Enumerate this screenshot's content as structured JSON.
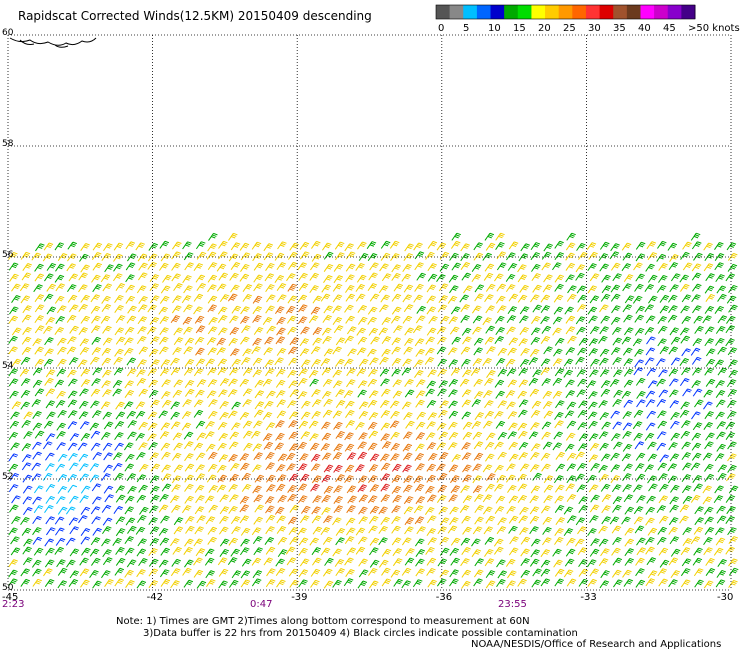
{
  "title": "Rapidscat Corrected Winds(12.5KM) 20150409 descending",
  "colorbar": {
    "colors": [
      "#555555",
      "#888888",
      "#00bfff",
      "#0066ff",
      "#0000cc",
      "#00aa00",
      "#00dd00",
      "#ffff00",
      "#ffcc00",
      "#ff9900",
      "#ff6600",
      "#ff3333",
      "#dd0000",
      "#a0522d",
      "#6b3a1e",
      "#ff00ff",
      "#cc00cc",
      "#8800cc",
      "#440088"
    ],
    "labels": [
      "0",
      "5",
      "10",
      "15",
      "20",
      "25",
      "30",
      "35",
      "40",
      "45",
      ">50 knots"
    ]
  },
  "chart_data": {
    "type": "scatter",
    "title": "Rapidscat Corrected Winds(12.5KM) 20150409 descending",
    "xlim": [
      -45,
      -30
    ],
    "ylim": [
      50,
      60
    ],
    "x_ticks": [
      "-45",
      "-42",
      "-39",
      "-36",
      "-33",
      "-30"
    ],
    "y_ticks": [
      "60",
      "58",
      "56",
      "54",
      "52",
      "50"
    ],
    "grid": true,
    "swath_top_lat": 56.3,
    "speed_units": "knots",
    "wind_speed_regions": [
      {
        "region": "south-west (-45 to -42, 50-53)",
        "speed_range": [
          5,
          20
        ]
      },
      {
        "region": "central (-42 to -36, 51-53)",
        "speed_range": [
          25,
          35
        ]
      },
      {
        "region": "north (-45 to -30, 54-56)",
        "speed_range": [
          20,
          30
        ]
      },
      {
        "region": "east (-33 to -30, 51-55)",
        "speed_range": [
          15,
          25
        ]
      }
    ],
    "time_labels": [
      "2:23",
      "0:47",
      "23:55"
    ]
  },
  "notes": {
    "line1": "Note: 1) Times are GMT 2)Times along bottom correspond to measurement at 60N",
    "line2": "3)Data buffer is 22 hrs from 20150409 4) Black circles indicate possible contamination",
    "line3": "NOAA/NESDIS/Office of Research and Applications"
  }
}
